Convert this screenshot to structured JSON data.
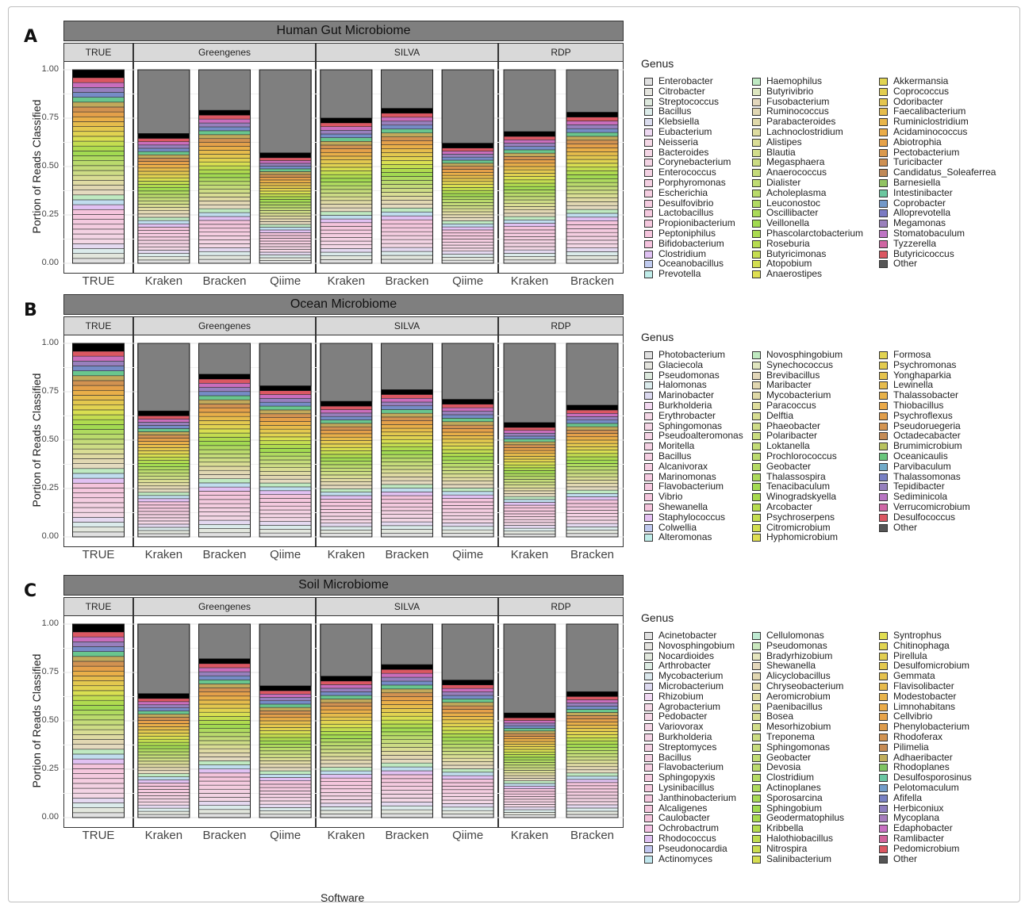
{
  "ylabel": "Portion of Reads Classified",
  "xlabel": "Software",
  "legend_title": "Genus",
  "colors": {
    "other": "#7f7f7f",
    "black": "#000000"
  },
  "chart_data": [
    {
      "type": "bar",
      "panel_label": "A",
      "title": "Human Gut Microbiome",
      "ylim": [
        0,
        1
      ],
      "yticks": [
        "0.00",
        "0.25",
        "0.50",
        "0.75",
        "1.00"
      ],
      "facets": [
        {
          "name": "TRUE",
          "bars": [
            {
              "label": "TRUE",
              "classified": 1.0
            }
          ]
        },
        {
          "name": "Greengenes",
          "bars": [
            {
              "label": "Kraken",
              "classified": 0.67
            },
            {
              "label": "Bracken",
              "classified": 0.79
            },
            {
              "label": "Qiime",
              "classified": 0.57
            }
          ]
        },
        {
          "name": "SILVA",
          "bars": [
            {
              "label": "Kraken",
              "classified": 0.75
            },
            {
              "label": "Bracken",
              "classified": 0.8
            },
            {
              "label": "Qiime",
              "classified": 0.62
            }
          ]
        },
        {
          "name": "RDP",
          "bars": [
            {
              "label": "Kraken",
              "classified": 0.68
            },
            {
              "label": "Bracken",
              "classified": 0.78
            }
          ]
        }
      ],
      "legend": [
        "Enterobacter",
        "Citrobacter",
        "Streptococcus",
        "Bacillus",
        "Klebsiella",
        "Eubacterium",
        "Neisseria",
        "Bacteroides",
        "Corynebacterium",
        "Enterococcus",
        "Porphyromonas",
        "Escherichia",
        "Desulfovibrio",
        "Lactobacillus",
        "Propionibacterium",
        "Peptoniphilus",
        "Bifidobacterium",
        "Clostridium",
        "Oceanobacillus",
        "Prevotella",
        "Haemophilus",
        "Butyrivibrio",
        "Fusobacterium",
        "Ruminococcus",
        "Parabacteroides",
        "Lachnoclostridium",
        "Alistipes",
        "Blautia",
        "Megasphaera",
        "Anaerococcus",
        "Dialister",
        "Acholeplasma",
        "Leuconostoc",
        "Oscillibacter",
        "Veillonella",
        "Phascolarctobacterium",
        "Roseburia",
        "Butyricimonas",
        "Atopobium",
        "Anaerostipes",
        "Akkermansia",
        "Coprococcus",
        "Odoribacter",
        "Faecalibacterium",
        "Ruminiclostridium",
        "Acidaminococcus",
        "Abiotrophia",
        "Pectobacterium",
        "Turicibacter",
        "Candidatus_Soleaferrea",
        "Barnesiella",
        "Intestinibacter",
        "Coprobacter",
        "Alloprevotella",
        "Megamonas",
        "Stomatobaculum",
        "Tyzzerella",
        "Butyricicoccus",
        "Other"
      ]
    },
    {
      "type": "bar",
      "panel_label": "B",
      "title": "Ocean Microbiome",
      "ylim": [
        0,
        1
      ],
      "yticks": [
        "0.00",
        "0.25",
        "0.50",
        "0.75",
        "1.00"
      ],
      "facets": [
        {
          "name": "TRUE",
          "bars": [
            {
              "label": "TRUE",
              "classified": 1.0
            }
          ]
        },
        {
          "name": "Greengenes",
          "bars": [
            {
              "label": "Kraken",
              "classified": 0.65
            },
            {
              "label": "Bracken",
              "classified": 0.84
            },
            {
              "label": "Qiime",
              "classified": 0.78
            }
          ]
        },
        {
          "name": "SILVA",
          "bars": [
            {
              "label": "Kraken",
              "classified": 0.7
            },
            {
              "label": "Bracken",
              "classified": 0.76
            },
            {
              "label": "Qiime",
              "classified": 0.71
            }
          ]
        },
        {
          "name": "RDP",
          "bars": [
            {
              "label": "Kraken",
              "classified": 0.59
            },
            {
              "label": "Bracken",
              "classified": 0.68
            }
          ]
        }
      ],
      "legend": [
        "Photobacterium",
        "Glaciecola",
        "Pseudomonas",
        "Halomonas",
        "Marinobacter",
        "Burkholderia",
        "Erythrobacter",
        "Sphingomonas",
        "Pseudoalteromonas",
        "Moritella",
        "Bacillus",
        "Alcanivorax",
        "Marinomonas",
        "Flavobacterium",
        "Vibrio",
        "Shewanella",
        "Staphylococcus",
        "Colwellia",
        "Alteromonas",
        "Novosphingobium",
        "Synechococcus",
        "Brevibacillus",
        "Maribacter",
        "Mycobacterium",
        "Paracoccus",
        "Delftia",
        "Phaeobacter",
        "Polaribacter",
        "Loktanella",
        "Prochlorococcus",
        "Geobacter",
        "Thalassospira",
        "Tenacibaculum",
        "Winogradskyella",
        "Arcobacter",
        "Psychroserpens",
        "Citromicrobium",
        "Hyphomicrobium",
        "Formosa",
        "Psychromonas",
        "Yonghaparkia",
        "Lewinella",
        "Thalassobacter",
        "Thiobacillus",
        "Psychroflexus",
        "Pseudoruegeria",
        "Octadecabacter",
        "Brumimicrobium",
        "Oceanicaulis",
        "Parvibaculum",
        "Thalassomonas",
        "Tepidibacter",
        "Sediminicola",
        "Verrucomicrobium",
        "Desulfococcus",
        "Other"
      ]
    },
    {
      "type": "bar",
      "panel_label": "C",
      "title": "Soil Microbiome",
      "ylim": [
        0,
        1
      ],
      "yticks": [
        "0.00",
        "0.25",
        "0.50",
        "0.75",
        "1.00"
      ],
      "facets": [
        {
          "name": "TRUE",
          "bars": [
            {
              "label": "TRUE",
              "classified": 1.0
            }
          ]
        },
        {
          "name": "Greengenes",
          "bars": [
            {
              "label": "Kraken",
              "classified": 0.64
            },
            {
              "label": "Bracken",
              "classified": 0.82
            },
            {
              "label": "Qiime",
              "classified": 0.68
            }
          ]
        },
        {
          "name": "SILVA",
          "bars": [
            {
              "label": "Kraken",
              "classified": 0.73
            },
            {
              "label": "Bracken",
              "classified": 0.79
            },
            {
              "label": "Qiime",
              "classified": 0.71
            }
          ]
        },
        {
          "name": "RDP",
          "bars": [
            {
              "label": "Kraken",
              "classified": 0.54
            },
            {
              "label": "Bracken",
              "classified": 0.65
            }
          ]
        }
      ],
      "legend": [
        "Acinetobacter",
        "Novosphingobium",
        "Nocardioides",
        "Arthrobacter",
        "Mycobacterium",
        "Microbacterium",
        "Rhizobium",
        "Agrobacterium",
        "Pedobacter",
        "Variovorax",
        "Burkholderia",
        "Streptomyces",
        "Bacillus",
        "Flavobacterium",
        "Sphingopyxis",
        "Lysinibacillus",
        "Janthinobacterium",
        "Alcaligenes",
        "Caulobacter",
        "Ochrobactrum",
        "Rhodococcus",
        "Pseudonocardia",
        "Actinomyces",
        "Cellulomonas",
        "Pseudomonas",
        "Bradyrhizobium",
        "Shewanella",
        "Alicyclobacillus",
        "Chryseobacterium",
        "Aeromicrobium",
        "Paenibacillus",
        "Bosea",
        "Mesorhizobium",
        "Treponema",
        "Sphingomonas",
        "Geobacter",
        "Devosia",
        "Clostridium",
        "Actinoplanes",
        "Sporosarcina",
        "Sphingobium",
        "Geodermatophilus",
        "Kribbella",
        "Halothiobacillus",
        "Nitrospira",
        "Salinibacterium",
        "Syntrophus",
        "Chitinophaga",
        "Pirellula",
        "Desulfomicrobium",
        "Gemmata",
        "Flavisolibacter",
        "Modestobacter",
        "Limnohabitans",
        "Cellvibrio",
        "Phenylobacterium",
        "Rhodoferax",
        "Pilimelia",
        "Adhaeribacter",
        "Rhodoplanes",
        "Desulfosporosinus",
        "Pelotomaculum",
        "Afifella",
        "Herbiconiux",
        "Mycoplana",
        "Edaphobacter",
        "Ramlibacter",
        "Pedomicrobium",
        "Other"
      ]
    }
  ]
}
